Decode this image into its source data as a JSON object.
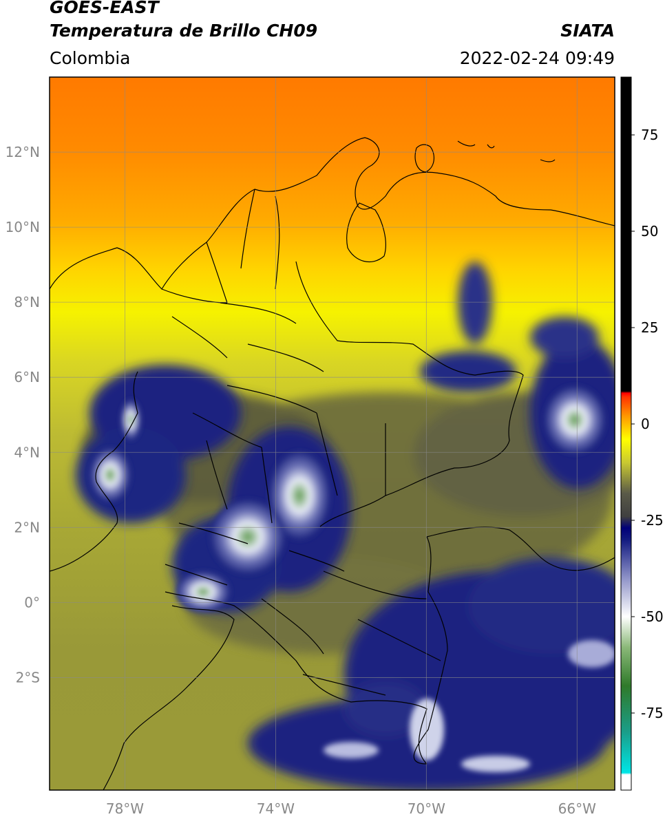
{
  "header": {
    "satellite": "GOES-EAST",
    "product": "Temperatura de Brillo CH09",
    "region": "Colombia",
    "agency": "SIATA",
    "datetime": "2022-02-24 09:49"
  },
  "map": {
    "lon_range": [
      -80,
      -65
    ],
    "lat_range": [
      -5,
      14
    ],
    "lon_ticks": [
      {
        "value": -78,
        "label": "78°W"
      },
      {
        "value": -74,
        "label": "74°W"
      },
      {
        "value": -70,
        "label": "70°W"
      },
      {
        "value": -66,
        "label": "66°W"
      }
    ],
    "lat_ticks": [
      {
        "value": 12,
        "label": "12°N"
      },
      {
        "value": 10,
        "label": "10°N"
      },
      {
        "value": 8,
        "label": "8°N"
      },
      {
        "value": 6,
        "label": "6°N"
      },
      {
        "value": 4,
        "label": "4°N"
      },
      {
        "value": 2,
        "label": "2°N"
      },
      {
        "value": 0,
        "label": "0°"
      },
      {
        "value": -2,
        "label": "2°S"
      }
    ]
  },
  "colorbar": {
    "range": [
      -95,
      90
    ],
    "ticks": [
      {
        "value": 75,
        "label": "75"
      },
      {
        "value": 50,
        "label": "50"
      },
      {
        "value": 25,
        "label": "25"
      },
      {
        "value": 0,
        "label": "0"
      },
      {
        "value": -25,
        "label": "-25"
      },
      {
        "value": -50,
        "label": "-50"
      },
      {
        "value": -75,
        "label": "-75"
      }
    ],
    "stops": [
      {
        "value": -95,
        "color": "#ffffff"
      },
      {
        "value": -91,
        "color": "#ffffff"
      },
      {
        "value": -90.5,
        "color": "#00e6e6"
      },
      {
        "value": -80,
        "color": "#1a9e8a"
      },
      {
        "value": -68,
        "color": "#2f7a2a"
      },
      {
        "value": -58,
        "color": "#8ab878"
      },
      {
        "value": -50,
        "color": "#ffffff"
      },
      {
        "value": -40,
        "color": "#8f93c8"
      },
      {
        "value": -30,
        "color": "#121a80"
      },
      {
        "value": -27,
        "color": "#000078"
      },
      {
        "value": -24,
        "color": "#404040"
      },
      {
        "value": -18,
        "color": "#5a5a48"
      },
      {
        "value": -10,
        "color": "#c9c931"
      },
      {
        "value": -4,
        "color": "#ffff00"
      },
      {
        "value": 2,
        "color": "#ff9900"
      },
      {
        "value": 7,
        "color": "#ff3300"
      },
      {
        "value": 8,
        "color": "#ff0000"
      },
      {
        "value": 8.5,
        "color": "#000000"
      },
      {
        "value": 90,
        "color": "#000000"
      }
    ]
  },
  "colors": {
    "orange": "#ff8000",
    "yellow": "#f2f200",
    "olive": "#b5b52f",
    "dark_olive": "#77773a",
    "navy": "#1a237e",
    "cloud_white": "#e8ecf6",
    "cloud_green": "#5e9a4e",
    "border": "#000000",
    "grid": "#8a8a8a"
  }
}
